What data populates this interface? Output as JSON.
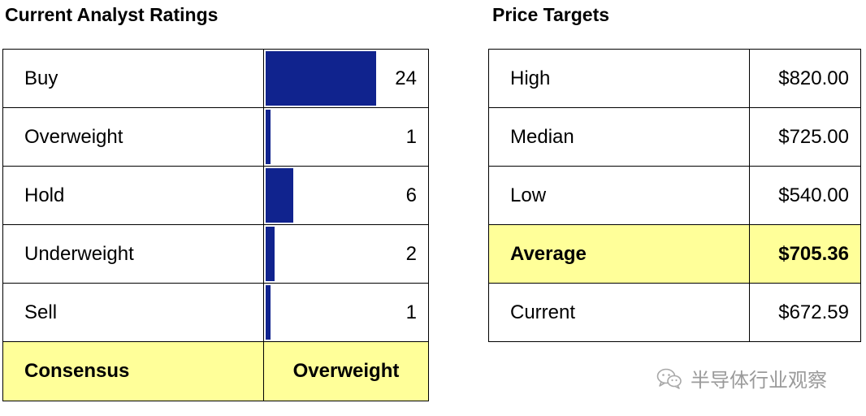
{
  "ratings": {
    "title": "Current Analyst Ratings",
    "bar_color": "#10238e",
    "rows": [
      {
        "label": "Buy",
        "count": 24
      },
      {
        "label": "Overweight",
        "count": 1
      },
      {
        "label": "Hold",
        "count": 6
      },
      {
        "label": "Underweight",
        "count": 2
      },
      {
        "label": "Sell",
        "count": 1
      }
    ],
    "consensus": {
      "label": "Consensus",
      "value": "Overweight"
    }
  },
  "targets": {
    "title": "Price Targets",
    "rows": [
      {
        "label": "High",
        "value": "$820.00"
      },
      {
        "label": "Median",
        "value": "$725.00"
      },
      {
        "label": "Low",
        "value": "$540.00"
      },
      {
        "label": "Average",
        "value": "$705.36"
      },
      {
        "label": "Current",
        "value": "$672.59"
      }
    ]
  },
  "highlight_color": "#ffff99",
  "watermark": {
    "text": "半导体行业观察",
    "icon": "wechat-icon"
  }
}
